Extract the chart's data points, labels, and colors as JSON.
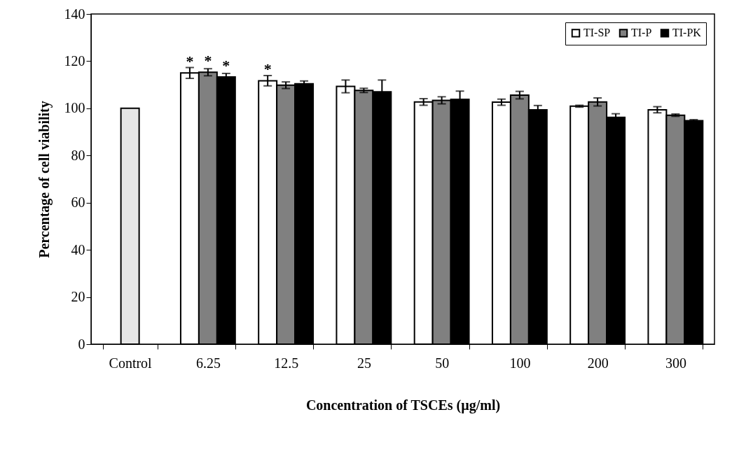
{
  "chart_data": {
    "type": "bar",
    "categories": [
      "Control",
      "6.25",
      "12.5",
      "25",
      "50",
      "100",
      "200",
      "300"
    ],
    "xlabel": "Concentration of TSCEs (µg/ml)",
    "ylabel": "Percentage of cell viability",
    "series": [
      {
        "color": "#e6e6e6",
        "values": [
          100,
          null,
          null,
          null,
          null,
          null,
          null,
          null
        ]
      },
      {
        "name": "TI-SP",
        "color": "#ffffff",
        "values": [
          null,
          115,
          111.7,
          109.3,
          102.7,
          102.6,
          100.9,
          99.4
        ],
        "errors": [
          null,
          2.3,
          2.2,
          2.7,
          1.4,
          1.3,
          0.4,
          1.3
        ]
      },
      {
        "name": "TI-P",
        "color": "#808080",
        "values": [
          null,
          115.3,
          109.8,
          107.6,
          103.4,
          105.6,
          102.7,
          97.1
        ],
        "errors": [
          null,
          1.5,
          1.4,
          0.9,
          1.5,
          1.6,
          1.7,
          0.5
        ]
      },
      {
        "name": "TI-PK",
        "color": "#000000",
        "values": [
          null,
          113.3,
          110.4,
          107,
          103.8,
          99.4,
          96.2,
          94.8
        ],
        "errors": [
          null,
          1.5,
          1.2,
          5,
          3.5,
          1.8,
          1.5,
          0.4
        ]
      }
    ],
    "ylim": [
      0,
      140
    ],
    "yticks": [
      0,
      20,
      40,
      60,
      80,
      100,
      120,
      140
    ],
    "grid": false,
    "legend": "top right",
    "annotations": [
      {
        "text": "*",
        "x": "6.25",
        "y": 115
      },
      {
        "text": "*",
        "x": "6.25",
        "y": 115.3
      },
      {
        "text": "*",
        "x": "6.25",
        "y": 113.3
      },
      {
        "text": "*",
        "x": "12.5",
        "y": 111.7
      }
    ]
  }
}
